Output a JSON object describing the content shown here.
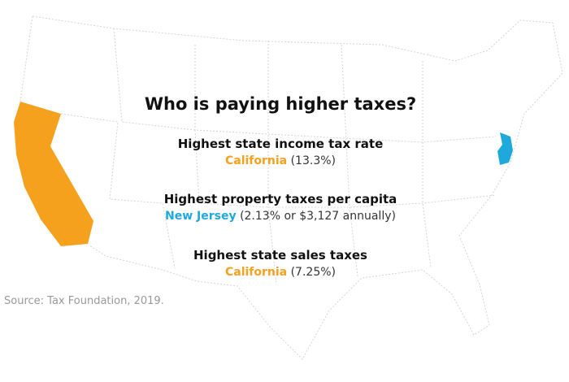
{
  "title": "Who is paying higher taxes?",
  "items": [
    {
      "heading": "Highest state income tax rate",
      "state": "California",
      "detail": "(13.3%)"
    },
    {
      "heading": "Highest property taxes per capita",
      "state": "New Jersey",
      "detail": "(2.13% or $3,127 annually)"
    },
    {
      "heading": "Highest state sales taxes",
      "state": "California",
      "detail": "(7.25%)"
    }
  ],
  "source": "Source: Tax Foundation, 2019."
}
